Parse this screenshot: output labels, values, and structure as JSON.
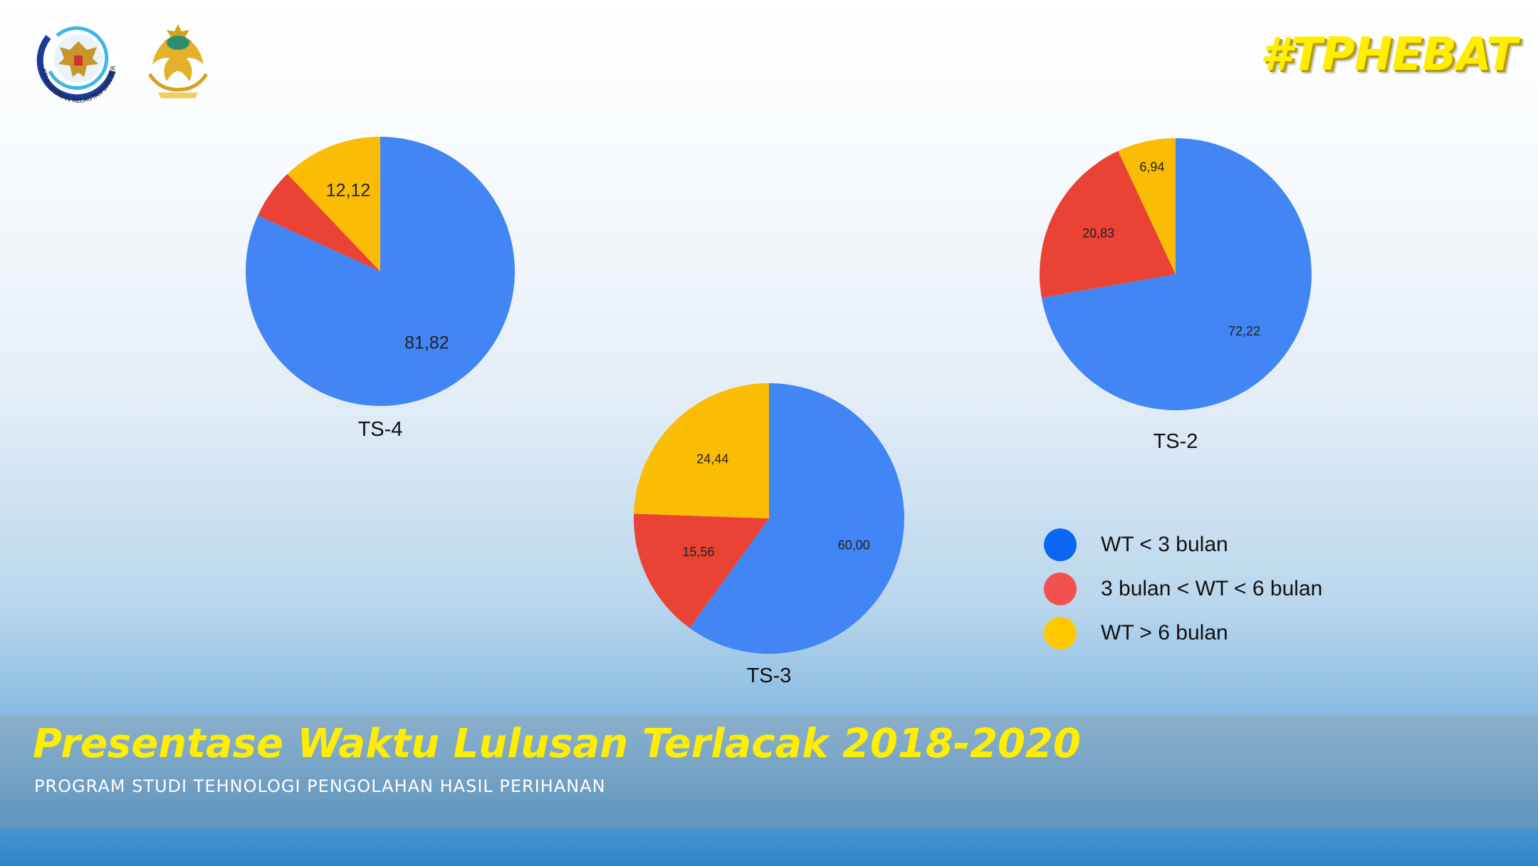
{
  "header": {
    "hashtag": "#TPHEBAT",
    "logos": [
      {
        "name": "kkp-logo",
        "text": "KEMENTERIAN KELAUTAN DAN PERIKANAN"
      },
      {
        "name": "polytechnic-emblem",
        "text": ""
      }
    ]
  },
  "footer": {
    "title": "Presentase Waktu Lulusan Terlacak 2018-2020",
    "subtitle": "PROGRAM STUDI TEHNOLOGI PENGOLAHAN HASIL PERIHANAN"
  },
  "legend": [
    {
      "label": "WT < 3 bulan",
      "color": "#0b66f2"
    },
    {
      "label": "3 bulan < WT < 6 bulan",
      "color": "#f45050"
    },
    {
      "label": "WT > 6 bulan",
      "color": "#ffc800"
    }
  ],
  "colors": {
    "blue": "#4285f4",
    "red": "#ea4335",
    "yellow": "#fbbc04"
  },
  "chart_data": [
    {
      "type": "pie",
      "title": "TS-4",
      "labels": [
        "WT < 3 bulan",
        "3 bulan < WT < 6 bulan",
        "WT > 6 bulan"
      ],
      "values": [
        81.82,
        6.06,
        12.12
      ],
      "data_labels": [
        "81,82",
        "",
        "12,12"
      ]
    },
    {
      "type": "pie",
      "title": "TS-3",
      "labels": [
        "WT < 3 bulan",
        "3 bulan < WT < 6 bulan",
        "WT > 6 bulan"
      ],
      "values": [
        60.0,
        15.56,
        24.44
      ],
      "data_labels": [
        "60,00",
        "15,56",
        "24,44"
      ]
    },
    {
      "type": "pie",
      "title": "TS-2",
      "labels": [
        "WT < 3 bulan",
        "3 bulan < WT < 6 bulan",
        "WT > 6 bulan"
      ],
      "values": [
        72.22,
        20.83,
        6.94
      ],
      "data_labels": [
        "72,22",
        "20,83",
        "6,94"
      ]
    }
  ]
}
